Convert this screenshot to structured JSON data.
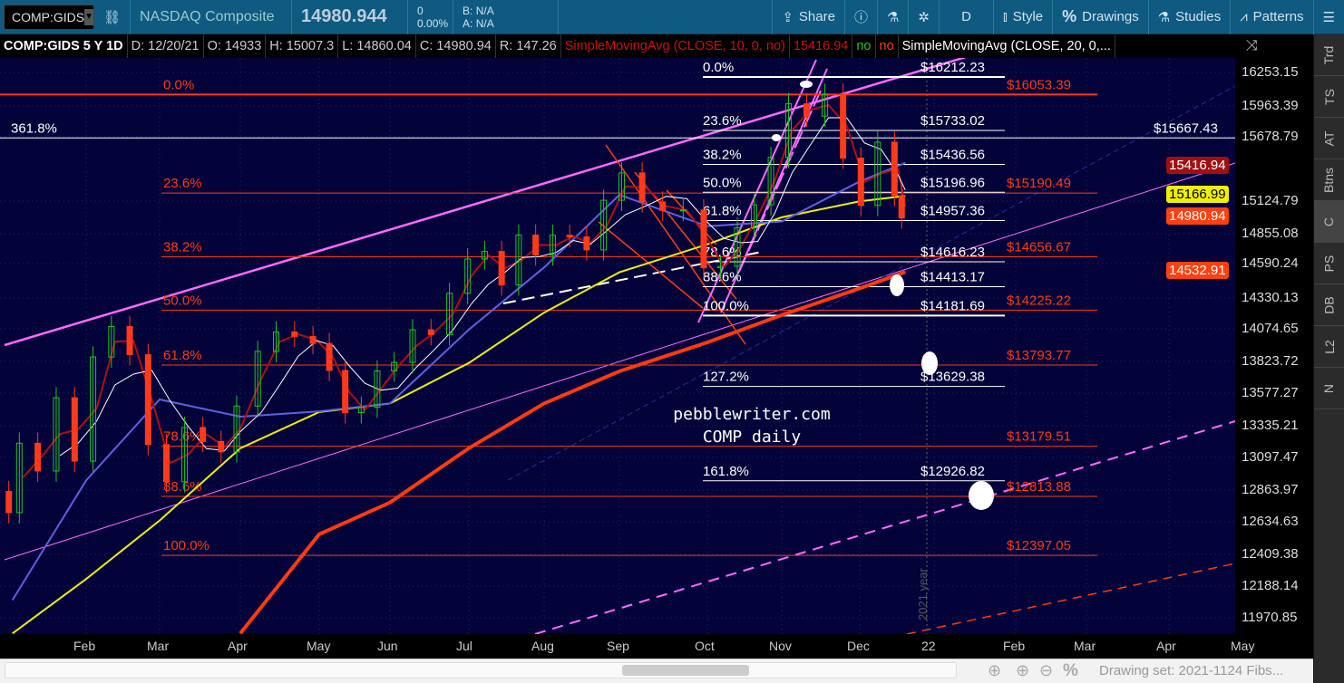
{
  "toolbar": {
    "symbol": "COMP:GIDS",
    "name": "NASDAQ Composite",
    "last": "14980.944",
    "change": "0",
    "change_pct": "0.00%",
    "bid": "B: N/A",
    "ask": "A: N/A",
    "share": "Share",
    "aggregation": "D",
    "style": "Style",
    "drawings": "Drawings",
    "studies": "Studies",
    "patterns": "Patterns"
  },
  "infobar": {
    "title": "COMP:GIDS 5 Y 1D",
    "date": "D: 12/20/21",
    "open": "O: 14933",
    "high": "H: 15007.3",
    "low": "L: 14860.04",
    "close": "C: 14980.94",
    "range": "R: 147.26",
    "study1": "SimpleMovingAvg (CLOSE, 10, 0, no)",
    "study1_value": "15416.94",
    "flag1": "no",
    "flag2": "no",
    "study2": "SimpleMovingAvg (CLOSE, 20, 0,..."
  },
  "side_tabs": [
    "Trd",
    "TS",
    "AT",
    "Btns",
    "C",
    "PS",
    "DB",
    "L2",
    "N"
  ],
  "bottom": {
    "drawing_set": "Drawing set: 2021-1124 Fibs..."
  },
  "chart_data": {
    "type": "candlestick",
    "scale": "log",
    "ylim": [
      11970.85,
      16253.15
    ],
    "y_ticks": [
      "16253.15",
      "15963.39",
      "15678.79",
      "15124.79",
      "14855.08",
      "14590.24",
      "14330.13",
      "14074.65",
      "13823.72",
      "13577.27",
      "13335.21",
      "13097.47",
      "12863.97",
      "12634.63",
      "12409.38",
      "12188.14",
      "11970.85"
    ],
    "x_ticks": [
      "Feb",
      "Mar",
      "Apr",
      "May",
      "Jun",
      "Jul",
      "Aug",
      "Sep",
      "Oct",
      "Nov",
      "Dec",
      "22",
      "Feb",
      "Mar",
      "Apr",
      "May"
    ],
    "price_labels": [
      {
        "value": "15416.94",
        "color": "#a01010"
      },
      {
        "value": "15166.99",
        "color": "#f0f000"
      },
      {
        "value": "14980.94",
        "color": "#ff4010"
      },
      {
        "value": "14532.91",
        "color": "#ff4010"
      }
    ],
    "closes": {
      "dates": [
        "01-04",
        "01-08",
        "01-15",
        "01-22",
        "01-29",
        "02-05",
        "02-12",
        "02-19",
        "02-26",
        "03-05",
        "03-12",
        "03-19",
        "03-26",
        "04-01",
        "04-09",
        "04-16",
        "04-23",
        "04-30",
        "05-07",
        "05-14",
        "05-21",
        "05-28",
        "06-04",
        "06-11",
        "06-18",
        "06-25",
        "07-02",
        "07-09",
        "07-16",
        "07-23",
        "07-30",
        "08-06",
        "08-13",
        "08-20",
        "08-27",
        "09-03",
        "09-10",
        "09-17",
        "09-24",
        "10-01",
        "10-08",
        "10-15",
        "10-22",
        "10-29",
        "11-05",
        "11-12",
        "11-19",
        "11-26",
        "12-03",
        "12-10",
        "12-17",
        "12-20"
      ],
      "values": [
        12698,
        13202,
        12998,
        13543,
        13070,
        13856,
        14095,
        13874,
        13192,
        12920,
        13319,
        13215,
        13138,
        13480,
        13900,
        14052,
        14016,
        13962,
        13752,
        13430,
        13471,
        13748,
        13814,
        14069,
        14030,
        14360,
        14639,
        14701,
        14427,
        14837,
        14672,
        14835,
        14822,
        14714,
        15129,
        15363,
        15115,
        15043,
        15047,
        14567,
        14579,
        14897,
        15090,
        15498,
        15971,
        15860,
        16057,
        15491,
        15085,
        15630,
        15169,
        14980
      ]
    },
    "moving_averages": {
      "dates": [
        "01-04",
        "02-01",
        "03-01",
        "04-01",
        "05-01",
        "06-01",
        "07-01",
        "08-01",
        "09-01",
        "10-01",
        "11-01",
        "12-01",
        "12-20"
      ],
      "sma50": {
        "color": "#6060e0",
        "values": [
          12090,
          12930,
          13530,
          13400,
          13440,
          13500,
          14070,
          14570,
          15175,
          14910,
          14950,
          15290,
          15450
        ]
      },
      "sma100": {
        "color": "#f0f000",
        "values": [
          11866,
          12234,
          12642,
          13165,
          13435,
          13500,
          13810,
          14205,
          14530,
          14760,
          14985,
          15120,
          15167
        ]
      },
      "sma200": {
        "color": "#ff3a10",
        "values": [
          null,
          null,
          null,
          11866,
          12545,
          12770,
          13165,
          13500,
          13745,
          13970,
          14185,
          14400,
          14533
        ]
      }
    },
    "fib_left": {
      "color": "#ff3a10",
      "levels": [
        {
          "pct": "0.0%",
          "price": "$16053.39",
          "value": 16053.39
        },
        {
          "pct": "23.6%",
          "price": "$15190.49",
          "value": 15190.49
        },
        {
          "pct": "38.2%",
          "price": "$14656.67",
          "value": 14656.67
        },
        {
          "pct": "50.0%",
          "price": "$14225.22",
          "value": 14225.22
        },
        {
          "pct": "61.8%",
          "price": "$13793.77",
          "value": 13793.77
        },
        {
          "pct": "78.6%",
          "price": "$13179.51",
          "value": 13179.51
        },
        {
          "pct": "88.6%",
          "price": "$12813.88",
          "value": 12813.88
        },
        {
          "pct": "100.0%",
          "price": "$12397.05",
          "value": 12397.05
        }
      ]
    },
    "fib_extension": {
      "pct": "361.8%",
      "price": "$15667.43",
      "value": 15667.43
    },
    "fib_right": {
      "color": "#ffffff",
      "levels": [
        {
          "pct": "0.0%",
          "price": "$16212.23",
          "value": 16212.23
        },
        {
          "pct": "23.6%",
          "price": "$15733.02",
          "value": 15733.02
        },
        {
          "pct": "38.2%",
          "price": "$15436.56",
          "value": 15436.56
        },
        {
          "pct": "50.0%",
          "price": "$15196.96",
          "value": 15196.96
        },
        {
          "pct": "61.8%",
          "price": "$14957.36",
          "value": 14957.36
        },
        {
          "pct": "78.6%",
          "price": "$14616.23",
          "value": 14616.23
        },
        {
          "pct": "88.6%",
          "price": "$14413.17",
          "value": 14413.17
        },
        {
          "pct": "100.0%",
          "price": "$14181.69",
          "value": 14181.69
        },
        {
          "pct": "127.2%",
          "price": "$13629.38",
          "value": 13629.38
        },
        {
          "pct": "161.8%",
          "price": "$12926.82",
          "value": 12926.82
        }
      ]
    },
    "annotations": [
      "pebblewriter.com",
      "COMP daily"
    ],
    "year_marker": "2021 year",
    "up_color": "#1fc51f",
    "down_color": "#ff3a1a"
  }
}
